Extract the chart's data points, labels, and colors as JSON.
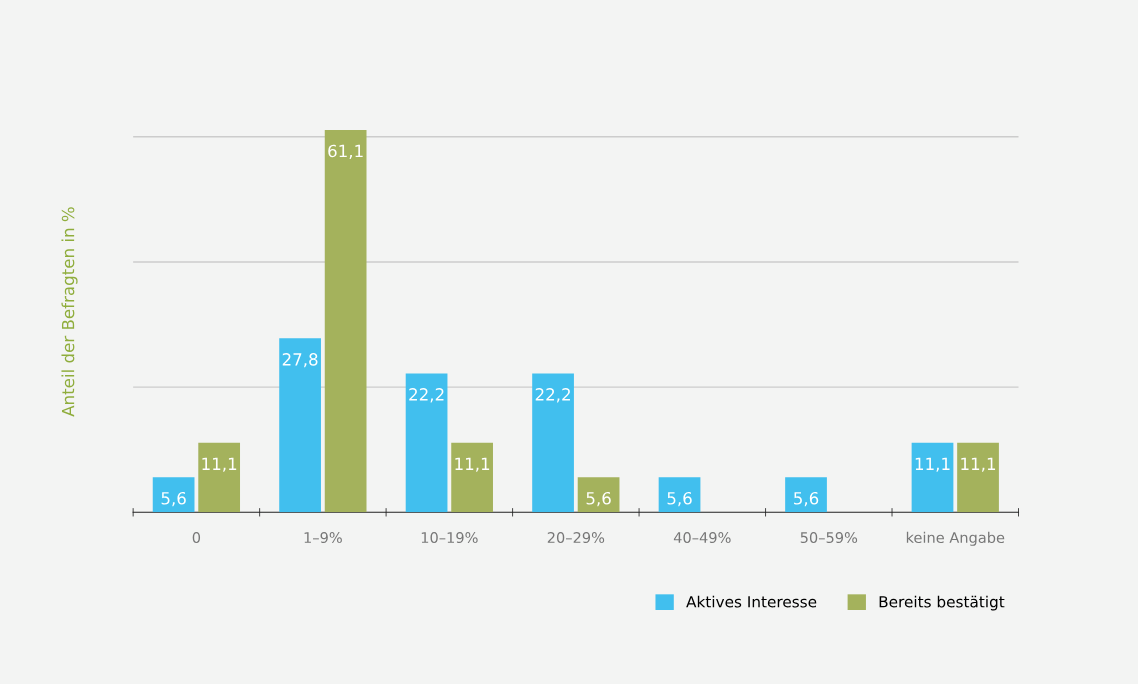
{
  "chart_data": {
    "type": "bar",
    "ylabel": "Anteil der Befragten in %",
    "categories": [
      "0",
      "1–9%",
      "10–19%",
      "20–29%",
      "40–49%",
      "50–59%",
      "keine Angabe"
    ],
    "series": [
      {
        "name": "Aktives Interesse",
        "color": "#41bfee",
        "values": [
          5.6,
          27.8,
          22.2,
          22.2,
          5.6,
          5.6,
          11.1
        ],
        "value_labels": [
          "5,6",
          "27,8",
          "22,2",
          "22,2",
          "5,6",
          "5,6",
          "11,1"
        ]
      },
      {
        "name": "Bereits bestätigt",
        "color": "#a4b25c",
        "values": [
          11.1,
          61.1,
          11.1,
          5.6,
          null,
          null,
          11.1
        ],
        "value_labels": [
          "11,1",
          "61,1",
          "11,1",
          "5,6",
          null,
          null,
          "11,1"
        ]
      }
    ],
    "yticks": [
      {
        "value": 20,
        "label": null
      },
      {
        "value": 40,
        "label": null
      },
      {
        "value": 60,
        "label": null
      }
    ],
    "tick_labels": "x",
    "grid": "y",
    "legend": "bottom right"
  }
}
